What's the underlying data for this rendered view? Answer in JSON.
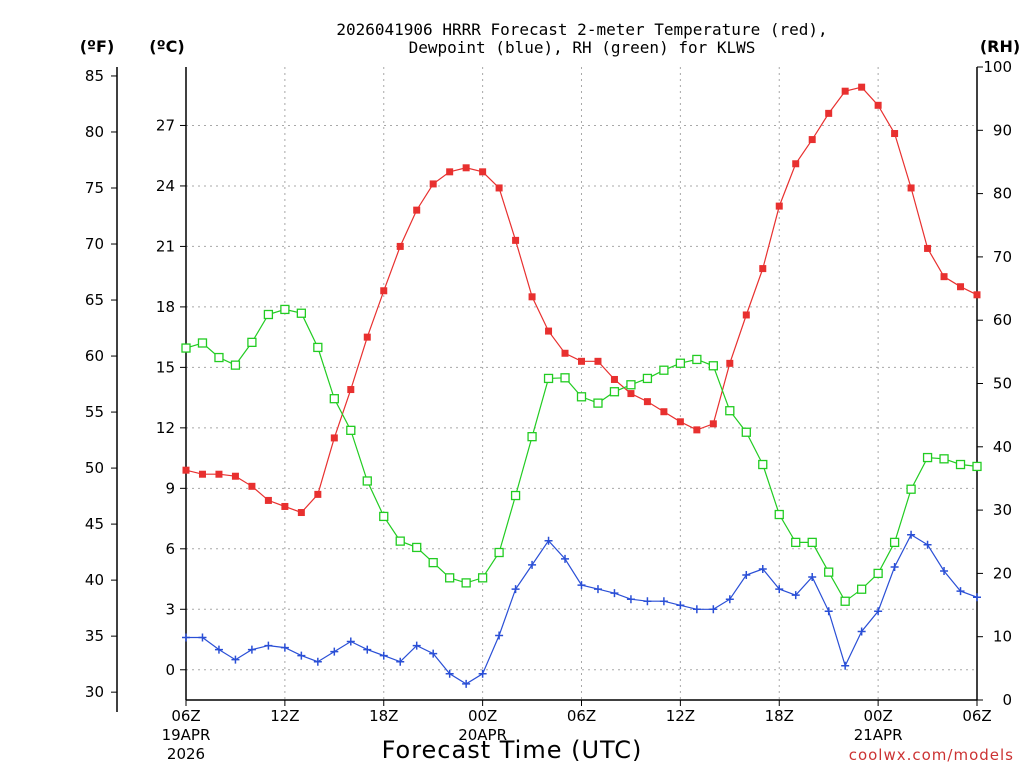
{
  "chart_data": {
    "type": "line",
    "title_lines": [
      "2026041906 HRRR Forecast 2-meter Temperature (red),",
      "Dewpoint (blue), RH (green) for KLWS"
    ],
    "xlabel": "Forecast Time (UTC)",
    "credit": "coolwx.com/models",
    "units": {
      "f": "(ºF)",
      "c": "(ºC)",
      "rh": "(RH)"
    },
    "x_ticks": [
      {
        "h": 0,
        "label": "06Z",
        "line2": "19APR",
        "line3": "2026"
      },
      {
        "h": 6,
        "label": "12Z"
      },
      {
        "h": 12,
        "label": "18Z"
      },
      {
        "h": 18,
        "label": "00Z",
        "line2": "20APR"
      },
      {
        "h": 24,
        "label": "06Z"
      },
      {
        "h": 30,
        "label": "12Z"
      },
      {
        "h": 36,
        "label": "18Z"
      },
      {
        "h": 42,
        "label": "00Z",
        "line2": "21APR"
      },
      {
        "h": 48,
        "label": "06Z"
      }
    ],
    "xlim": [
      0,
      48
    ],
    "celsius_axis": {
      "range": [
        -1.5,
        29.9
      ],
      "ticks": [
        0,
        3,
        6,
        9,
        12,
        15,
        18,
        21,
        24,
        27
      ]
    },
    "fahrenheit_axis": {
      "range": [
        29.3,
        85.8
      ],
      "ticks": [
        30,
        35,
        40,
        45,
        50,
        55,
        60,
        65,
        70,
        75,
        80,
        85
      ]
    },
    "rh_axis": {
      "range": [
        0,
        100
      ],
      "ticks": [
        0,
        10,
        20,
        30,
        40,
        50,
        60,
        70,
        80,
        90,
        100
      ]
    },
    "grid": true,
    "series": [
      {
        "name": "Temperature",
        "color": "#e8302f",
        "marker": "filled-square",
        "axis": "celsius",
        "values": [
          9.9,
          9.7,
          9.7,
          9.6,
          9.1,
          8.4,
          8.1,
          7.8,
          8.7,
          11.5,
          13.9,
          16.5,
          18.8,
          21.0,
          22.8,
          24.1,
          24.7,
          24.9,
          24.7,
          23.9,
          21.3,
          18.5,
          16.8,
          15.7,
          15.3,
          15.3,
          14.4,
          13.7,
          13.3,
          12.8,
          12.3,
          11.9,
          12.2,
          15.2,
          17.6,
          19.9,
          23.0,
          25.1,
          26.3,
          27.6,
          28.7,
          28.9,
          28.0,
          26.6,
          23.9,
          20.9,
          19.5,
          19.0,
          18.6
        ]
      },
      {
        "name": "Dewpoint",
        "color": "#2a4fd6",
        "marker": "plus",
        "axis": "celsius",
        "values": [
          1.6,
          1.6,
          1.0,
          0.5,
          1.0,
          1.2,
          1.1,
          0.7,
          0.4,
          0.9,
          1.4,
          1.0,
          0.7,
          0.4,
          1.2,
          0.8,
          -0.2,
          -0.7,
          -0.2,
          1.7,
          4.0,
          5.2,
          6.4,
          5.5,
          4.2,
          4.0,
          3.8,
          3.5,
          3.4,
          3.4,
          3.2,
          3.0,
          3.0,
          3.5,
          4.7,
          5.0,
          4.0,
          3.7,
          4.6,
          2.9,
          0.2,
          1.9,
          2.9,
          5.1,
          6.7,
          6.2,
          4.9,
          3.9,
          3.6
        ]
      },
      {
        "name": "RH",
        "color": "#22cc22",
        "marker": "open-square",
        "axis": "rh",
        "values": [
          55.6,
          56.4,
          54.1,
          52.9,
          56.5,
          60.9,
          61.7,
          61.1,
          55.7,
          47.6,
          42.6,
          34.6,
          29.0,
          25.1,
          24.1,
          21.7,
          19.3,
          18.5,
          19.3,
          23.3,
          32.3,
          41.6,
          50.8,
          50.9,
          47.9,
          46.9,
          48.7,
          49.8,
          50.8,
          52.1,
          53.2,
          53.8,
          52.8,
          45.7,
          42.3,
          37.2,
          29.3,
          24.9,
          24.9,
          20.2,
          15.6,
          17.5,
          20.0,
          24.9,
          33.3,
          38.3,
          38.1,
          37.2,
          36.9
        ]
      }
    ]
  }
}
